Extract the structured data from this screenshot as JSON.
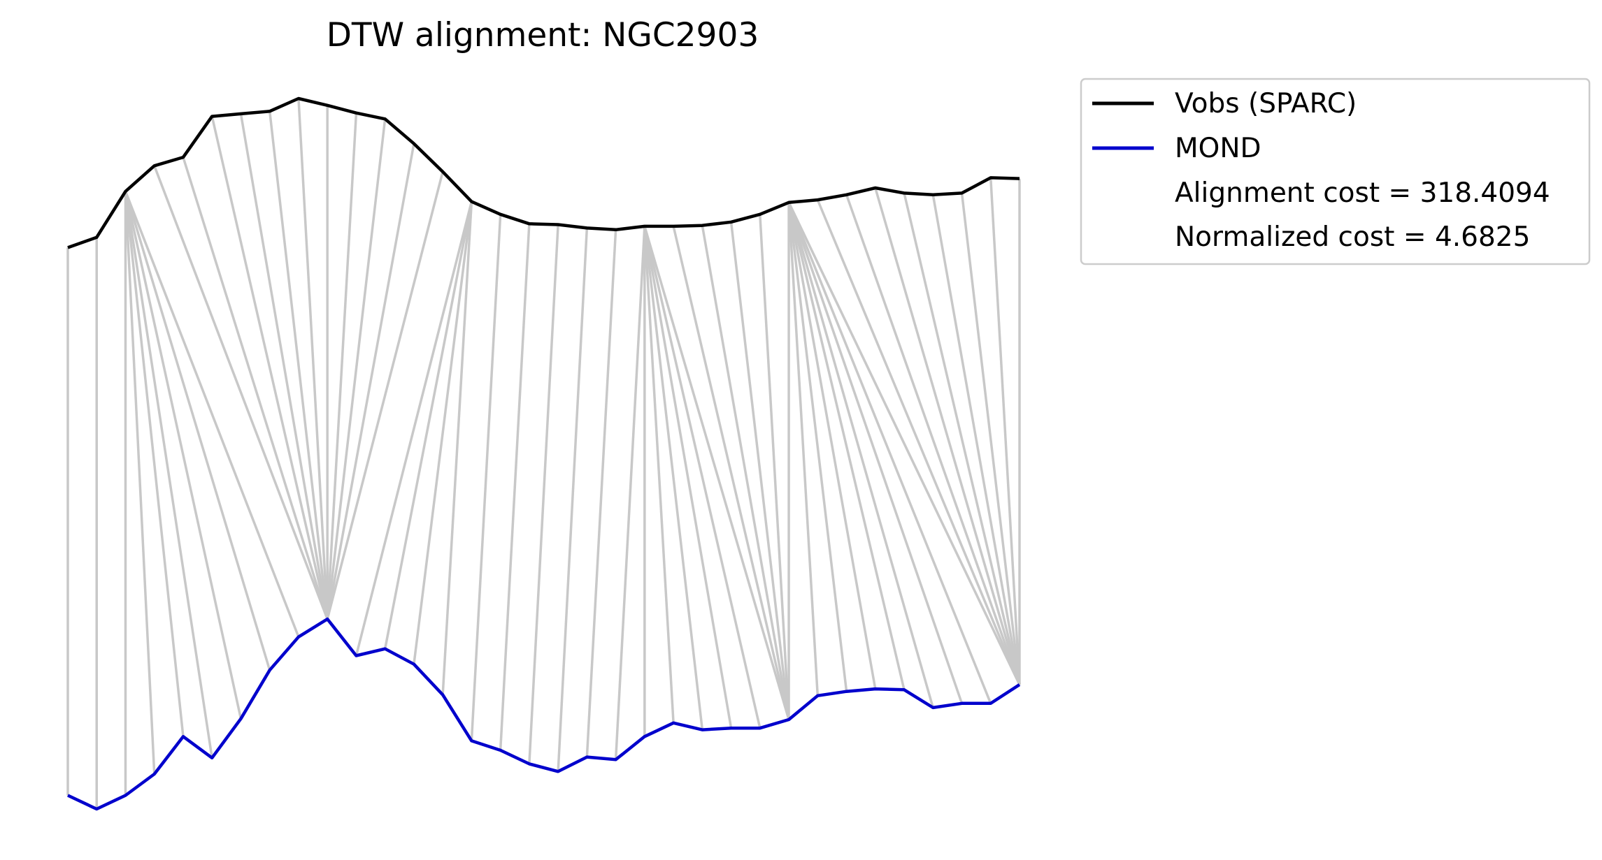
{
  "chart_data": {
    "type": "line",
    "title": "DTW alignment: NGC2903",
    "xlabel": "",
    "ylabel": "",
    "axes_visible": false,
    "grid": false,
    "legend_placement": "outside-top-right",
    "series": [
      {
        "name": "Vobs (SPARC)",
        "color": "#000000",
        "values": [
          0.558,
          0.57,
          0.624,
          0.654,
          0.664,
          0.712,
          0.715,
          0.718,
          0.733,
          0.725,
          0.716,
          0.709,
          0.68,
          0.647,
          0.612,
          0.597,
          0.586,
          0.585,
          0.581,
          0.579,
          0.583,
          0.583,
          0.584,
          0.588,
          0.597,
          0.611,
          0.614,
          0.62,
          0.628,
          0.622,
          0.62,
          0.622,
          0.64,
          0.639
        ]
      },
      {
        "name": "MOND",
        "color": "#0000cc",
        "values": [
          -0.085,
          -0.101,
          -0.085,
          -0.06,
          -0.016,
          -0.041,
          0.005,
          0.062,
          0.101,
          0.122,
          0.079,
          0.087,
          0.069,
          0.033,
          -0.021,
          -0.032,
          -0.048,
          -0.057,
          -0.04,
          -0.043,
          -0.016,
          0.0,
          -0.008,
          -0.006,
          -0.006,
          0.004,
          0.032,
          0.037,
          0.04,
          0.039,
          0.018,
          0.023,
          0.023,
          0.045
        ]
      }
    ],
    "alignment_path": [
      [
        0,
        0
      ],
      [
        1,
        1
      ],
      [
        2,
        2
      ],
      [
        2,
        3
      ],
      [
        2,
        4
      ],
      [
        2,
        5
      ],
      [
        2,
        6
      ],
      [
        2,
        7
      ],
      [
        2,
        8
      ],
      [
        3,
        9
      ],
      [
        4,
        9
      ],
      [
        5,
        9
      ],
      [
        6,
        9
      ],
      [
        7,
        9
      ],
      [
        8,
        9
      ],
      [
        9,
        9
      ],
      [
        10,
        9
      ],
      [
        11,
        9
      ],
      [
        12,
        9
      ],
      [
        13,
        9
      ],
      [
        14,
        10
      ],
      [
        14,
        11
      ],
      [
        14,
        12
      ],
      [
        14,
        13
      ],
      [
        15,
        14
      ],
      [
        16,
        15
      ],
      [
        17,
        16
      ],
      [
        18,
        17
      ],
      [
        19,
        18
      ],
      [
        20,
        19
      ],
      [
        20,
        20
      ],
      [
        20,
        21
      ],
      [
        20,
        22
      ],
      [
        20,
        23
      ],
      [
        20,
        24
      ],
      [
        20,
        25
      ],
      [
        21,
        25
      ],
      [
        22,
        25
      ],
      [
        23,
        25
      ],
      [
        24,
        25
      ],
      [
        25,
        25
      ],
      [
        25,
        26
      ],
      [
        25,
        27
      ],
      [
        25,
        28
      ],
      [
        25,
        29
      ],
      [
        25,
        30
      ],
      [
        25,
        31
      ],
      [
        25,
        32
      ],
      [
        25,
        33
      ],
      [
        26,
        33
      ],
      [
        27,
        33
      ],
      [
        28,
        33
      ],
      [
        29,
        33
      ],
      [
        30,
        33
      ],
      [
        31,
        33
      ],
      [
        32,
        33
      ],
      [
        33,
        33
      ]
    ],
    "alignment_line_color": "#c8c8c8",
    "legend_extra": [
      "Alignment cost = 318.4094",
      "Normalized cost = 4.6825"
    ]
  }
}
